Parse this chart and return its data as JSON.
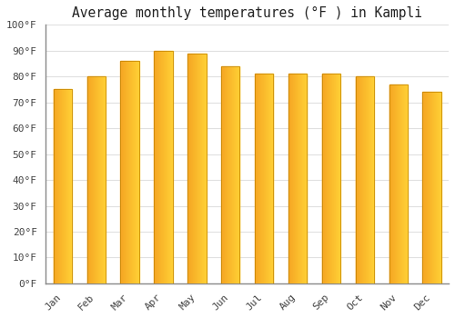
{
  "title": "Average monthly temperatures (°F ) in Kampli",
  "months": [
    "Jan",
    "Feb",
    "Mar",
    "Apr",
    "May",
    "Jun",
    "Jul",
    "Aug",
    "Sep",
    "Oct",
    "Nov",
    "Dec"
  ],
  "values": [
    75,
    80,
    86,
    90,
    89,
    84,
    81,
    81,
    81,
    80,
    77,
    74
  ],
  "bar_color_left": "#F5A623",
  "bar_color_right": "#FFD966",
  "bar_edge_color": "#C8880A",
  "background_color": "#FFFFFF",
  "grid_color": "#E0E0E0",
  "ytick_labels": [
    "0°F",
    "10°F",
    "20°F",
    "30°F",
    "40°F",
    "50°F",
    "60°F",
    "70°F",
    "80°F",
    "90°F",
    "100°F"
  ],
  "ytick_values": [
    0,
    10,
    20,
    30,
    40,
    50,
    60,
    70,
    80,
    90,
    100
  ],
  "ylim": [
    0,
    100
  ],
  "title_fontsize": 10.5,
  "tick_fontsize": 8,
  "font_family": "monospace"
}
